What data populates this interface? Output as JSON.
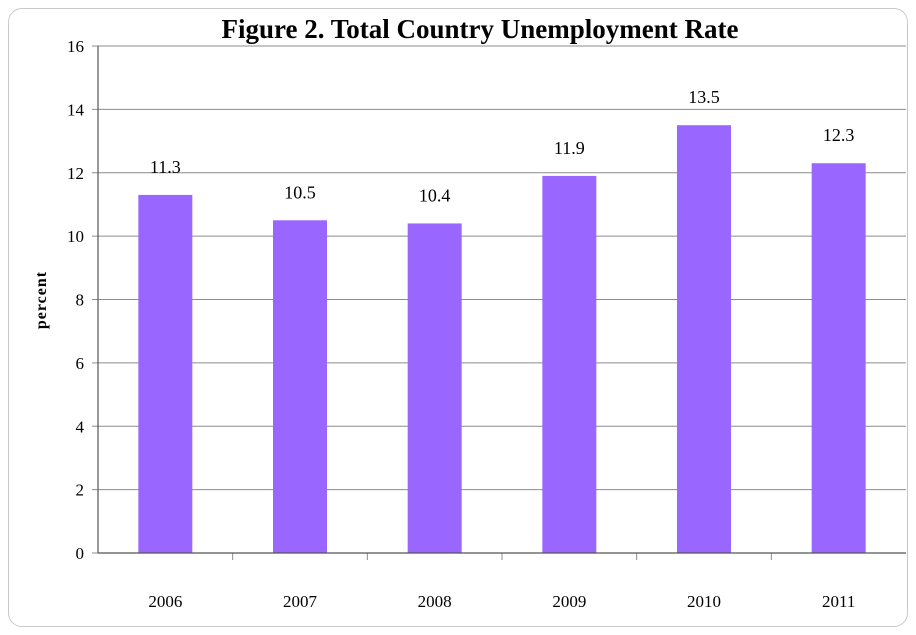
{
  "chart_data": {
    "type": "bar",
    "title": "Figure 2. Total Country Unemployment Rate",
    "xlabel": "",
    "ylabel": "percent",
    "categories": [
      "2006",
      "2007",
      "2008",
      "2009",
      "2010",
      "2011"
    ],
    "values": [
      11.3,
      10.5,
      10.4,
      11.9,
      13.5,
      12.3
    ],
    "data_labels": [
      "11.3",
      "10.5",
      "10.4",
      "11.9",
      "13.5",
      "12.3"
    ],
    "ylim": [
      0,
      16
    ],
    "yticks": [
      0,
      2,
      4,
      6,
      8,
      10,
      12,
      14,
      16
    ],
    "grid": true,
    "legend": "none",
    "bar_color": "#9966ff",
    "gridline_color": "#8c8c8c"
  }
}
